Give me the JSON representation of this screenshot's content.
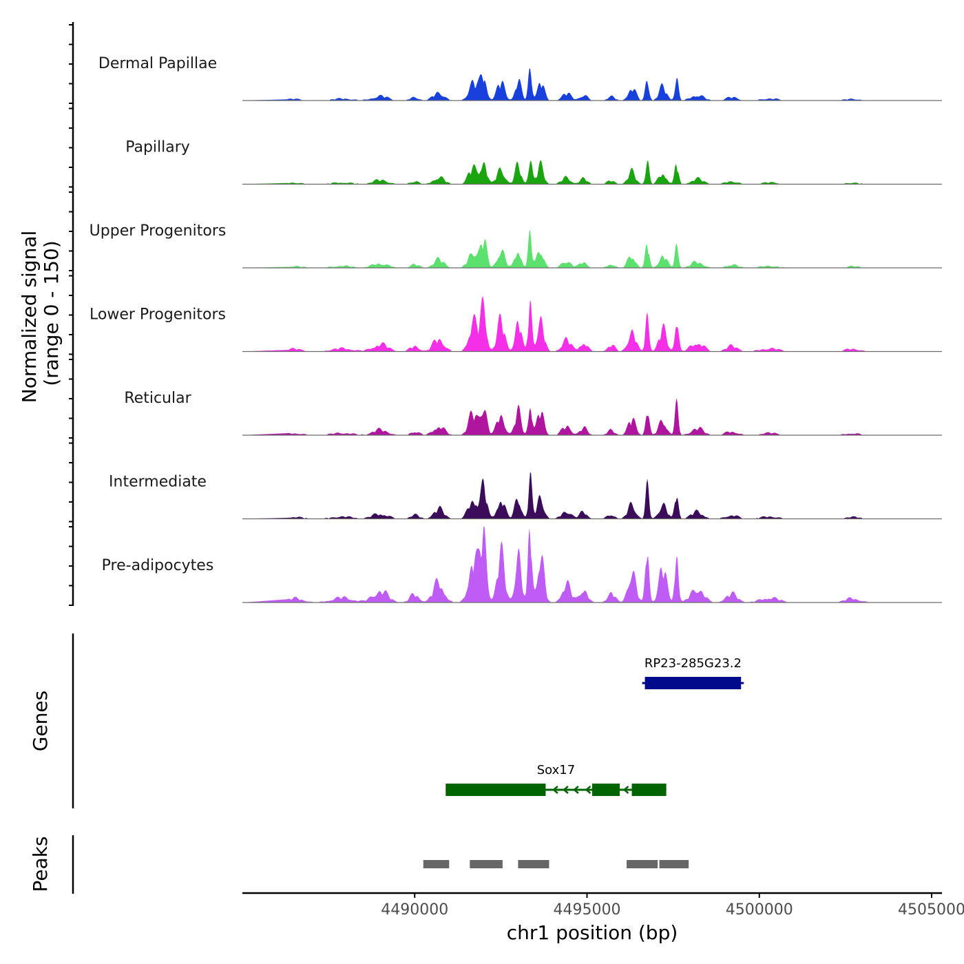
{
  "chart_data": {
    "type": "area",
    "title": "",
    "y_axis_title": "Normalized signal",
    "y_axis_subtitle": "(range 0 - 150)",
    "ylim": [
      0,
      150
    ],
    "xlabel": "chr1 position (bp)",
    "xlim": [
      4485000,
      4505300
    ],
    "x_ticks": [
      4490000,
      4495000,
      4500000,
      4505000
    ],
    "x_tick_labels": [
      "4490000",
      "4495000",
      "4500000",
      "4505000"
    ],
    "coverage_tracks": [
      {
        "name": "Dermal Papillae",
        "color": "#1740dc",
        "scale": 0.55
      },
      {
        "name": "Papillary",
        "color": "#1aa40f",
        "scale": 0.5
      },
      {
        "name": "Upper Progenitors",
        "color": "#5ce06e",
        "scale": 0.55
      },
      {
        "name": "Lower Progenitors",
        "color": "#f52ee8",
        "scale": 0.9
      },
      {
        "name": "Reticular",
        "color": "#b0159f",
        "scale": 0.65
      },
      {
        "name": "Intermediate",
        "color": "#3b0c5a",
        "scale": 0.65
      },
      {
        "name": "Pre-adipocytes",
        "color": "#c05cf6",
        "scale": 1.4
      }
    ],
    "peak_shape": [
      {
        "x": 4486500,
        "w": 600,
        "h": 5
      },
      {
        "x": 4487900,
        "w": 700,
        "h": 6
      },
      {
        "x": 4489000,
        "w": 500,
        "h": 14
      },
      {
        "x": 4490000,
        "w": 300,
        "h": 10
      },
      {
        "x": 4490700,
        "w": 350,
        "h": 25
      },
      {
        "x": 4491700,
        "w": 300,
        "h": 55
      },
      {
        "x": 4492000,
        "w": 200,
        "h": 80
      },
      {
        "x": 4492500,
        "w": 250,
        "h": 55
      },
      {
        "x": 4493000,
        "w": 200,
        "h": 60
      },
      {
        "x": 4493350,
        "w": 120,
        "h": 95
      },
      {
        "x": 4493650,
        "w": 220,
        "h": 60
      },
      {
        "x": 4494400,
        "w": 300,
        "h": 22
      },
      {
        "x": 4494900,
        "w": 250,
        "h": 18
      },
      {
        "x": 4495700,
        "w": 250,
        "h": 12
      },
      {
        "x": 4496300,
        "w": 250,
        "h": 40
      },
      {
        "x": 4496750,
        "w": 120,
        "h": 75
      },
      {
        "x": 4497200,
        "w": 250,
        "h": 40
      },
      {
        "x": 4497600,
        "w": 120,
        "h": 70
      },
      {
        "x": 4498200,
        "w": 400,
        "h": 18
      },
      {
        "x": 4499200,
        "w": 400,
        "h": 10
      },
      {
        "x": 4500300,
        "w": 600,
        "h": 6
      },
      {
        "x": 4502700,
        "w": 500,
        "h": 5
      }
    ],
    "genes": [
      {
        "name": "RP23-285G23.2",
        "start": 4496600,
        "end": 4499550,
        "strand": "+",
        "color": "#000a8a"
      },
      {
        "name": "Sox17",
        "start": 4490900,
        "end": 4497300,
        "strand": "-",
        "color": "#006400"
      }
    ],
    "sox17_exons": [
      [
        4490900,
        4493800
      ],
      [
        4495150,
        4495950
      ],
      [
        4496300,
        4497300
      ]
    ],
    "peaks": [
      {
        "start": 4490250,
        "end": 4491000
      },
      {
        "start": 4491600,
        "end": 4492550
      },
      {
        "start": 4493000,
        "end": 4493900
      },
      {
        "start": 4496150,
        "end": 4497050
      },
      {
        "start": 4497100,
        "end": 4497950
      }
    ],
    "gene_panel_label": "Genes",
    "peak_panel_label": "Peaks",
    "peak_color": "#666666"
  }
}
